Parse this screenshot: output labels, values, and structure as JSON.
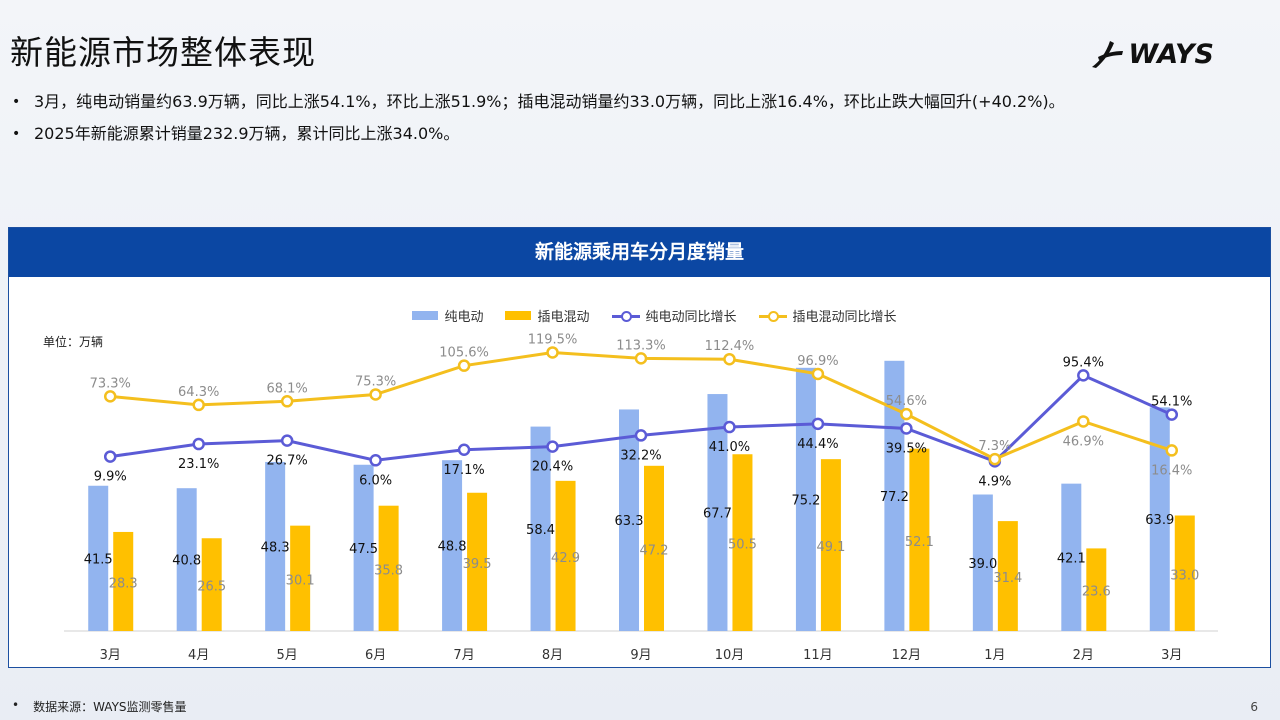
{
  "header": {
    "title": "新能源市场整体表现",
    "logo_text": "WAYS"
  },
  "bullets": [
    "3月，纯电动销量约63.9万辆，同比上涨54.1%，环比上涨51.9%；插电混动销量约33.0万辆，同比上涨16.4%，环比止跌大幅回升(+40.2%)。",
    "2025年新能源累计销量232.9万辆，累计同比上涨34.0%。"
  ],
  "panel": {
    "title": "新能源乘用车分月度销量",
    "unit": "单位：万辆"
  },
  "chart_data": {
    "type": "bar",
    "categories": [
      "3月",
      "4月",
      "5月",
      "6月",
      "7月",
      "8月",
      "9月",
      "10月",
      "11月",
      "12月",
      "1月",
      "2月",
      "3月"
    ],
    "series": [
      {
        "name": "纯电动",
        "kind": "bar",
        "color": "#92b4ef",
        "label_color": "#111111",
        "values": [
          41.5,
          40.8,
          48.3,
          47.5,
          48.8,
          58.4,
          63.3,
          67.7,
          75.2,
          77.2,
          39.0,
          42.1,
          63.9
        ]
      },
      {
        "name": "插电混动",
        "kind": "bar",
        "color": "#ffc000",
        "label_color": "#8c8c8c",
        "values": [
          28.3,
          26.5,
          30.1,
          35.8,
          39.5,
          42.9,
          47.2,
          50.5,
          49.1,
          52.1,
          31.4,
          23.6,
          33.0
        ]
      },
      {
        "name": "纯电动同比增长",
        "kind": "line",
        "unit": "%",
        "color": "#5b5bd6",
        "label_color": "#111111",
        "values": [
          9.9,
          23.1,
          26.7,
          6.0,
          17.1,
          20.4,
          32.2,
          41.0,
          44.4,
          39.5,
          4.9,
          95.4,
          54.1
        ]
      },
      {
        "name": "插电混动同比增长",
        "kind": "line",
        "unit": "%",
        "color": "#f4bf1e",
        "label_color": "#8c8c8c",
        "values": [
          73.3,
          64.3,
          68.1,
          75.3,
          105.6,
          119.5,
          113.3,
          112.4,
          96.9,
          54.6,
          7.3,
          46.9,
          16.4
        ]
      }
    ],
    "grid": false,
    "legend": "top-center"
  },
  "footer": {
    "bullet": "•",
    "source": "数据来源：WAYS监测零售量",
    "page": "6"
  }
}
